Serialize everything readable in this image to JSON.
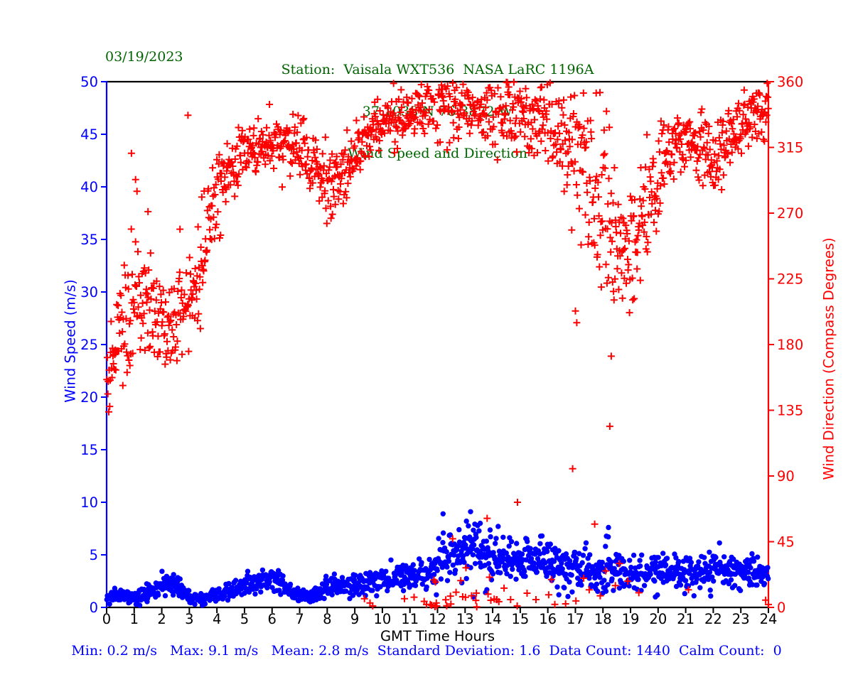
{
  "figure": {
    "date": "03/19/2023",
    "title_line1": "Station:  Vaisala WXT536  NASA LaRC 1196A",
    "title_line2": "37.1038 N 76.3872 W",
    "title_line3": "Wind Speed and Direction",
    "stats_line": "Min: 0.2 m/s   Max: 9.1 m/s   Mean: 2.8 m/s  Standard Deviation: 1.6  Data Count: 1440  Calm Count:  0",
    "colors": {
      "title": "#006400",
      "stats": "#0000ff",
      "frame": "#000000"
    }
  },
  "chart_data": {
    "type": "scatter",
    "title": "Wind Speed and Direction",
    "xlabel": "GMT Time Hours",
    "xlim": [
      0,
      24
    ],
    "x_ticks": [
      0,
      1,
      2,
      3,
      4,
      5,
      6,
      7,
      8,
      9,
      10,
      11,
      12,
      13,
      14,
      15,
      16,
      17,
      18,
      19,
      20,
      21,
      22,
      23,
      24
    ],
    "grid": false,
    "y_left": {
      "label": "Wind Speed (m/s)",
      "color": "#0000ff",
      "lim": [
        0,
        50
      ],
      "ticks": [
        0,
        5,
        10,
        15,
        20,
        25,
        30,
        35,
        40,
        45,
        50
      ]
    },
    "y_right": {
      "label": "Wind Direction (Compass Degrees)",
      "color": "#ff0000",
      "lim": [
        0,
        360
      ],
      "ticks": [
        0,
        45,
        90,
        135,
        180,
        225,
        270,
        315,
        360
      ]
    },
    "stats": {
      "min_ms": 0.2,
      "max_ms": 9.1,
      "mean_ms": 2.8,
      "std_dev": 1.6,
      "data_count": 1440,
      "calm_count": 0
    },
    "series": [
      {
        "name": "wind-speed",
        "axis": "left",
        "marker": "dot",
        "color": "#0000ff",
        "count": 1440,
        "seed": 11,
        "min": 0.2,
        "max": 9.1,
        "trend": {
          "hours": [
            0,
            0.5,
            1,
            1.5,
            2,
            2.3,
            2.7,
            3,
            3.5,
            4,
            4.5,
            5,
            5.5,
            6,
            6.5,
            7,
            7.5,
            8,
            8.4,
            9,
            9.5,
            10,
            10.5,
            11,
            11.6,
            12,
            12.5,
            13,
            13.5,
            14,
            14.5,
            15,
            15.5,
            16,
            16.5,
            17,
            17.5,
            18,
            18.5,
            19,
            19.5,
            20,
            20.5,
            21,
            21.5,
            22,
            22.5,
            23,
            23.5,
            24
          ],
          "mean": [
            1.2,
            1.1,
            1.0,
            1.4,
            2.2,
            2.3,
            1.6,
            0.9,
            0.9,
            1.2,
            1.6,
            2.0,
            2.4,
            2.6,
            2.0,
            1.1,
            1.1,
            1.7,
            2.2,
            1.9,
            2.4,
            2.7,
            2.9,
            3.0,
            3.2,
            4.3,
            5.0,
            5.2,
            5.0,
            4.6,
            4.4,
            4.6,
            4.8,
            4.5,
            4.0,
            3.6,
            3.3,
            3.6,
            3.4,
            3.0,
            3.2,
            3.6,
            3.4,
            3.1,
            3.3,
            3.6,
            3.4,
            3.4,
            3.3,
            3.1
          ],
          "sigma": [
            0.4,
            0.35,
            0.3,
            0.4,
            0.55,
            0.55,
            0.45,
            0.25,
            0.25,
            0.3,
            0.4,
            0.5,
            0.5,
            0.5,
            0.45,
            0.25,
            0.3,
            0.45,
            0.5,
            0.4,
            0.55,
            0.6,
            0.6,
            0.6,
            0.7,
            1.1,
            1.3,
            1.4,
            1.3,
            1.2,
            1.1,
            1.1,
            1.1,
            1.2,
            1.0,
            1.0,
            0.9,
            1.1,
            1.0,
            0.9,
            0.8,
            0.8,
            0.8,
            0.8,
            0.8,
            0.9,
            0.85,
            0.8,
            0.75,
            0.7
          ]
        },
        "outliers": [
          [
            12.2,
            8.9
          ],
          [
            13.2,
            9.1
          ],
          [
            13.05,
            8.2
          ],
          [
            13.55,
            8.0
          ],
          [
            14.2,
            7.7
          ],
          [
            18.2,
            7.6
          ],
          [
            1.2,
            0.2
          ],
          [
            3.2,
            0.3
          ],
          [
            13.3,
            1.0
          ],
          [
            16.4,
            1.2
          ],
          [
            19.9,
            1.0
          ],
          [
            21.3,
            1.1
          ]
        ]
      },
      {
        "name": "wind-direction",
        "axis": "right",
        "marker": "plus",
        "color": "#ff0000",
        "count": 1440,
        "seed": 97,
        "trend": {
          "hours": [
            0,
            0.3,
            0.7,
            1,
            1.4,
            2,
            2.5,
            3,
            3.3,
            3.7,
            4,
            4.5,
            5,
            5.5,
            6,
            6.5,
            7,
            7.5,
            8,
            8.5,
            9,
            9.5,
            10,
            11,
            12,
            13,
            14,
            15,
            16,
            16.5,
            17,
            17.5,
            18,
            18.4,
            19,
            19.5,
            20,
            20.5,
            21,
            21.5,
            22,
            22.5,
            23,
            23.5,
            24
          ],
          "mean": [
            152,
            178,
            200,
            216,
            205,
            192,
            196,
            208,
            228,
            262,
            285,
            300,
            310,
            316,
            320,
            316,
            308,
            298,
            288,
            296,
            310,
            322,
            332,
            338,
            346,
            345,
            342,
            338,
            330,
            322,
            308,
            296,
            276,
            248,
            242,
            264,
            296,
            315,
            322,
            312,
            304,
            318,
            332,
            338,
            340
          ],
          "sigma": [
            16,
            18,
            22,
            24,
            20,
            16,
            14,
            14,
            16,
            18,
            16,
            13,
            11,
            10,
            9,
            10,
            11,
            12,
            12,
            11,
            10,
            9,
            9,
            9,
            12,
            14,
            16,
            14,
            16,
            20,
            28,
            30,
            32,
            26,
            22,
            22,
            16,
            13,
            12,
            13,
            14,
            12,
            10,
            9,
            8
          ]
        },
        "outliers": [
          [
            0.9,
            311
          ],
          [
            1.05,
            293
          ],
          [
            1.1,
            285
          ],
          [
            1.5,
            271
          ],
          [
            2.66,
            259
          ],
          [
            2.95,
            337
          ],
          [
            9.35,
            6
          ],
          [
            9.55,
            3
          ],
          [
            9.65,
            1
          ],
          [
            10.8,
            6
          ],
          [
            11.15,
            7
          ],
          [
            11.6,
            2
          ],
          [
            12.55,
            47
          ],
          [
            13.8,
            61
          ],
          [
            14.9,
            72
          ],
          [
            16.9,
            95
          ],
          [
            17.0,
            203
          ],
          [
            17.05,
            195
          ],
          [
            17.3,
            20
          ],
          [
            17.5,
            12
          ],
          [
            17.7,
            57
          ],
          [
            17.9,
            8
          ],
          [
            18.1,
            25
          ],
          [
            18.25,
            124
          ],
          [
            18.3,
            172
          ],
          [
            18.45,
            15
          ],
          [
            18.6,
            30
          ],
          [
            18.9,
            18
          ],
          [
            19.3,
            10
          ],
          [
            21.1,
            12
          ],
          [
            23.9,
            5
          ],
          [
            24.0,
            2
          ]
        ]
      }
    ]
  }
}
